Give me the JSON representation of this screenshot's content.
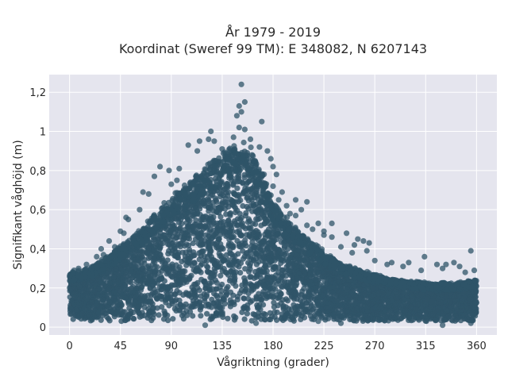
{
  "chart_data": {
    "type": "scatter",
    "title": "År 1979 - 2019",
    "subtitle": "Koordinat (Sweref 99 TM): E 348082, N 6207143",
    "xlabel": "Vågriktning (grader)",
    "ylabel": "Signifikant våghöjd (m)",
    "xlim": [
      -18,
      378
    ],
    "ylim": [
      -0.04,
      1.29
    ],
    "x_ticks": [
      0,
      45,
      90,
      135,
      180,
      225,
      270,
      315,
      360
    ],
    "x_tick_labels": [
      "0",
      "45",
      "90",
      "135",
      "180",
      "225",
      "270",
      "315",
      "360"
    ],
    "y_ticks": [
      0,
      0.2,
      0.4,
      0.6,
      0.8,
      1.0,
      1.2
    ],
    "y_tick_labels": [
      "0",
      "0,2",
      "0,4",
      "0,6",
      "0,8",
      "1",
      "1,2"
    ],
    "grid": true,
    "legend": "none",
    "marker_color": "#2f5468",
    "background_color": "#e5e5ee",
    "envelope": {
      "x": [
        0,
        20,
        40,
        60,
        80,
        100,
        120,
        140,
        150,
        160,
        170,
        180,
        200,
        220,
        240,
        260,
        280,
        300,
        320,
        340,
        360
      ],
      "y": [
        0.27,
        0.3,
        0.38,
        0.47,
        0.6,
        0.7,
        0.8,
        0.88,
        0.93,
        0.9,
        0.8,
        0.62,
        0.5,
        0.4,
        0.32,
        0.28,
        0.25,
        0.23,
        0.22,
        0.22,
        0.24
      ]
    },
    "outliers": [
      {
        "x": 152,
        "y": 1.24
      },
      {
        "x": 155,
        "y": 1.15
      },
      {
        "x": 150,
        "y": 1.13
      },
      {
        "x": 152,
        "y": 1.1
      },
      {
        "x": 148,
        "y": 1.08
      },
      {
        "x": 170,
        "y": 1.05
      },
      {
        "x": 150,
        "y": 1.02
      },
      {
        "x": 155,
        "y": 1.01
      },
      {
        "x": 125,
        "y": 1.0
      },
      {
        "x": 145,
        "y": 0.97
      },
      {
        "x": 160,
        "y": 0.96
      },
      {
        "x": 123,
        "y": 0.96
      },
      {
        "x": 128,
        "y": 0.95
      },
      {
        "x": 115,
        "y": 0.95
      },
      {
        "x": 105,
        "y": 0.93
      },
      {
        "x": 168,
        "y": 0.92
      },
      {
        "x": 135,
        "y": 0.91
      },
      {
        "x": 113,
        "y": 0.9
      },
      {
        "x": 175,
        "y": 0.9
      },
      {
        "x": 142,
        "y": 0.9
      },
      {
        "x": 178,
        "y": 0.86
      },
      {
        "x": 80,
        "y": 0.82
      },
      {
        "x": 180,
        "y": 0.82
      },
      {
        "x": 88,
        "y": 0.8
      },
      {
        "x": 97,
        "y": 0.81
      },
      {
        "x": 183,
        "y": 0.78
      },
      {
        "x": 75,
        "y": 0.77
      },
      {
        "x": 95,
        "y": 0.75
      },
      {
        "x": 180,
        "y": 0.72
      },
      {
        "x": 90,
        "y": 0.73
      },
      {
        "x": 65,
        "y": 0.69
      },
      {
        "x": 188,
        "y": 0.69
      },
      {
        "x": 70,
        "y": 0.68
      },
      {
        "x": 185,
        "y": 0.65
      },
      {
        "x": 200,
        "y": 0.65
      },
      {
        "x": 210,
        "y": 0.64
      },
      {
        "x": 192,
        "y": 0.62
      },
      {
        "x": 205,
        "y": 0.6
      },
      {
        "x": 62,
        "y": 0.6
      },
      {
        "x": 195,
        "y": 0.58
      },
      {
        "x": 200,
        "y": 0.57
      },
      {
        "x": 50,
        "y": 0.56
      },
      {
        "x": 52,
        "y": 0.55
      },
      {
        "x": 220,
        "y": 0.53
      },
      {
        "x": 210,
        "y": 0.52
      },
      {
        "x": 232,
        "y": 0.53
      },
      {
        "x": 215,
        "y": 0.5
      },
      {
        "x": 225,
        "y": 0.49
      },
      {
        "x": 45,
        "y": 0.49
      },
      {
        "x": 48,
        "y": 0.48
      },
      {
        "x": 245,
        "y": 0.48
      },
      {
        "x": 225,
        "y": 0.47
      },
      {
        "x": 232,
        "y": 0.46
      },
      {
        "x": 255,
        "y": 0.45
      },
      {
        "x": 260,
        "y": 0.44
      },
      {
        "x": 265,
        "y": 0.43
      },
      {
        "x": 35,
        "y": 0.44
      },
      {
        "x": 252,
        "y": 0.42
      },
      {
        "x": 240,
        "y": 0.41
      },
      {
        "x": 28,
        "y": 0.4
      },
      {
        "x": 40,
        "y": 0.41
      },
      {
        "x": 263,
        "y": 0.39
      },
      {
        "x": 250,
        "y": 0.38
      },
      {
        "x": 24,
        "y": 0.36
      },
      {
        "x": 30,
        "y": 0.37
      },
      {
        "x": 314,
        "y": 0.36
      },
      {
        "x": 355,
        "y": 0.39
      },
      {
        "x": 270,
        "y": 0.34
      },
      {
        "x": 285,
        "y": 0.33
      },
      {
        "x": 300,
        "y": 0.33
      },
      {
        "x": 281,
        "y": 0.32
      },
      {
        "x": 325,
        "y": 0.32
      },
      {
        "x": 333,
        "y": 0.32
      },
      {
        "x": 340,
        "y": 0.33
      },
      {
        "x": 345,
        "y": 0.31
      },
      {
        "x": 15,
        "y": 0.32
      },
      {
        "x": 8,
        "y": 0.3
      },
      {
        "x": 4,
        "y": 0.29
      },
      {
        "x": 295,
        "y": 0.31
      },
      {
        "x": 311,
        "y": 0.29
      },
      {
        "x": 0,
        "y": 0.26
      },
      {
        "x": 358,
        "y": 0.29
      },
      {
        "x": 350,
        "y": 0.28
      },
      {
        "x": 330,
        "y": 0.3
      },
      {
        "x": 220,
        "y": 0.03
      },
      {
        "x": 240,
        "y": 0.02
      },
      {
        "x": 330,
        "y": 0.01
      },
      {
        "x": 355,
        "y": 0.02
      },
      {
        "x": 120,
        "y": 0.01
      },
      {
        "x": 165,
        "y": 0.02
      }
    ]
  }
}
